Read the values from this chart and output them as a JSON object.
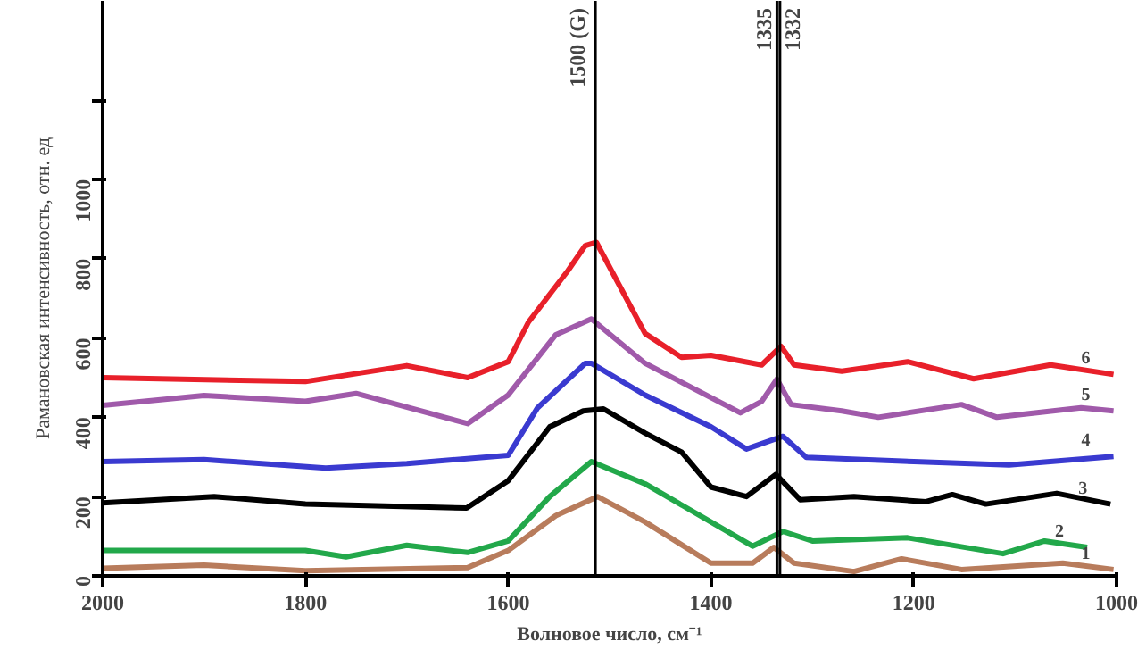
{
  "chart_data": {
    "type": "line",
    "xlabel": "Волновое число, см⁻¹",
    "ylabel": "Рамановская интенсивность, отн. ед",
    "xlim": [
      2000,
      1000
    ],
    "xticks": [
      2000,
      1800,
      1600,
      1400,
      1200,
      1000
    ],
    "ylim": [
      0,
      1450
    ],
    "yticks": [
      0,
      200,
      400,
      600,
      800,
      1000,
      {
        "value": 1200,
        "label": null
      }
    ],
    "grid": false,
    "line_style": "solid",
    "marker": "none",
    "ref_lines": [
      {
        "axis": "x",
        "value": 1514,
        "label": "1500 (G)",
        "color": "#000000"
      },
      {
        "axis": "x",
        "value": 1335,
        "label": "1335",
        "color": "#000000"
      },
      {
        "axis": "x",
        "value": 1332,
        "label": "1332",
        "color": "#000000"
      }
    ],
    "series": [
      {
        "name": "1",
        "color": "#b87c5c",
        "x": [
          2000,
          1900,
          1800,
          1640,
          1600,
          1553,
          1512,
          1465,
          1400,
          1359,
          1338,
          1318,
          1259,
          1212,
          1153,
          1053,
          1003
        ],
        "values": [
          19,
          27,
          13,
          21,
          64,
          152,
          200,
          136,
          32,
          32,
          72,
          32,
          11,
          43,
          16,
          32,
          16
        ]
      },
      {
        "name": "2",
        "color": "#22a84a",
        "x": [
          2000,
          1800,
          1760,
          1700,
          1640,
          1600,
          1559,
          1518,
          1465,
          1400,
          1359,
          1329,
          1300,
          1206,
          1112,
          1071,
          1029
        ],
        "values": [
          64,
          64,
          48,
          77,
          59,
          88,
          200,
          288,
          232,
          136,
          75,
          112,
          88,
          96,
          56,
          88,
          72
        ]
      },
      {
        "name": "3",
        "color": "#000000",
        "x": [
          2000,
          1890,
          1800,
          1641,
          1600,
          1559,
          1526,
          1506,
          1465,
          1429,
          1400,
          1365,
          1336,
          1312,
          1259,
          1188,
          1162,
          1129,
          1059,
          1006
        ],
        "values": [
          184,
          200,
          181,
          171,
          240,
          376,
          416,
          421,
          360,
          312,
          224,
          200,
          256,
          192,
          200,
          187,
          205,
          181,
          208,
          181
        ]
      },
      {
        "name": "4",
        "color": "#3a3ad0",
        "x": [
          2000,
          1900,
          1780,
          1700,
          1600,
          1571,
          1524,
          1518,
          1465,
          1400,
          1365,
          1329,
          1306,
          1200,
          1106,
          1003
        ],
        "values": [
          288,
          293,
          272,
          283,
          304,
          424,
          536,
          536,
          456,
          376,
          320,
          352,
          299,
          288,
          280,
          301
        ]
      },
      {
        "name": "5",
        "color": "#a05aaa",
        "x": [
          2000,
          1900,
          1800,
          1750,
          1640,
          1600,
          1553,
          1518,
          1465,
          1371,
          1350,
          1335,
          1321,
          1271,
          1235,
          1153,
          1118,
          1035,
          1003
        ],
        "values": [
          430,
          455,
          440,
          460,
          384,
          456,
          608,
          648,
          536,
          411,
          440,
          496,
          432,
          416,
          400,
          432,
          400,
          424,
          416
        ]
      },
      {
        "name": "6",
        "color": "#e8202a",
        "x": [
          2000,
          1800,
          1700,
          1640,
          1600,
          1580,
          1553,
          1541,
          1524,
          1513,
          1465,
          1429,
          1400,
          1350,
          1331,
          1318,
          1271,
          1206,
          1141,
          1065,
          1003
        ],
        "values": [
          500,
          490,
          530,
          500,
          540,
          640,
          730,
          770,
          833,
          841,
          611,
          551,
          556,
          532,
          579,
          532,
          516,
          540,
          497,
          532,
          508
        ]
      }
    ]
  }
}
